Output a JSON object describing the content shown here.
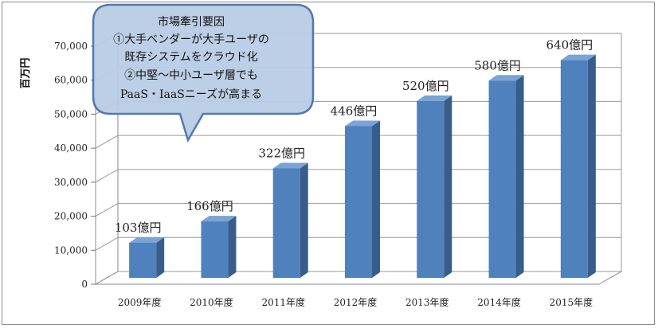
{
  "chart_data": {
    "type": "bar",
    "ylabel": "百万円",
    "ylim": [
      0,
      70000
    ],
    "yticks": [
      0,
      10000,
      20000,
      30000,
      40000,
      50000,
      60000,
      70000
    ],
    "ytick_labels": [
      "0",
      "10,000",
      "20,000",
      "30,000",
      "40,000",
      "50,000",
      "60,000",
      "70,000"
    ],
    "categories": [
      "2009年度",
      "2010年度",
      "2011年度",
      "2012年度",
      "2013年度",
      "2014年度",
      "2015年度"
    ],
    "values": [
      10300,
      16600,
      32200,
      44600,
      52000,
      58000,
      64000
    ],
    "data_labels": [
      "103億円",
      "166億円",
      "322億円",
      "446億円",
      "520億円",
      "580億円",
      "640億円"
    ],
    "grid": true,
    "style": "3d-column"
  },
  "callout": {
    "lines": [
      "市場牽引要因",
      "①大手ベンダーが大手ユーザの",
      "既存システムをクラウド化",
      "②中堅～中小ユーザ層でも",
      "PaaS・IaaSニーズが高まる"
    ]
  },
  "colors": {
    "bar_front": "#4f81bd",
    "bar_side": "#385d8a",
    "bar_top": "#7aa3d6",
    "callout_fill": "#b9cde5",
    "callout_stroke": "#4a72a8"
  }
}
